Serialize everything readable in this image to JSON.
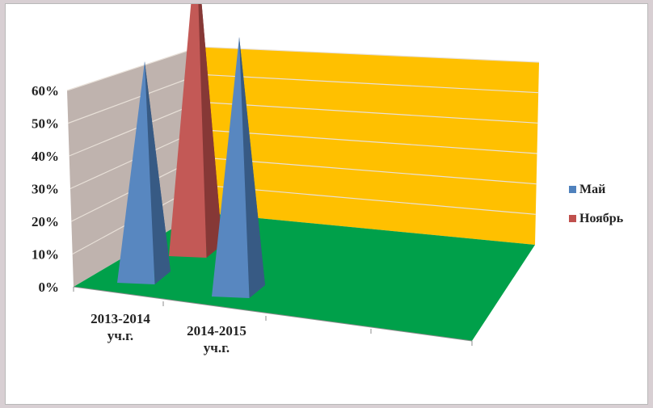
{
  "chart_data": {
    "type": "bar",
    "style": "3d-pyramid",
    "categories": [
      "2013-2014 уч.г.",
      "2014-2015 уч.г."
    ],
    "series": [
      {
        "name": "Май",
        "color": "#4f81bd",
        "values": [
          0.4,
          0.47
        ]
      },
      {
        "name": "Ноябрь",
        "color": "#c0504d",
        "values": [
          0.57,
          null
        ]
      }
    ],
    "ylim": [
      0,
      0.6
    ],
    "yticks": [
      "0%",
      "10%",
      "20%",
      "30%",
      "40%",
      "50%",
      "60%"
    ],
    "legend_position": "right",
    "grid": true,
    "colors": {
      "back_wall": "#ffc000",
      "side_wall": "#bfb3ae",
      "floor": "#00a04a"
    }
  }
}
